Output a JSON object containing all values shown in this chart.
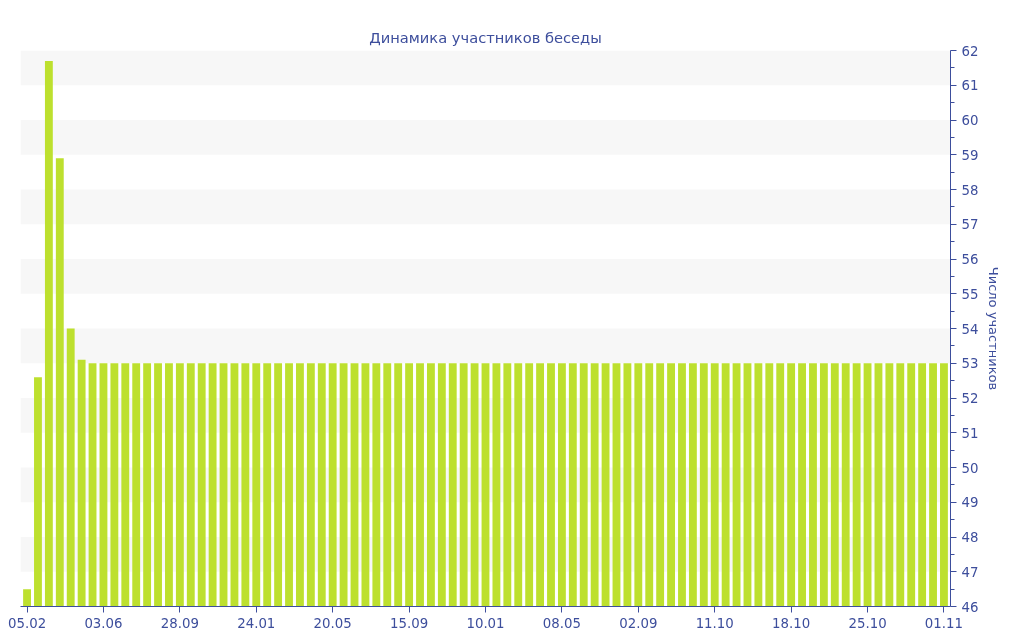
{
  "chart_data": {
    "type": "bar",
    "title": "Динамика участников беседы",
    "ylabel": "Число участников",
    "categories": [
      "05.02",
      null,
      null,
      null,
      null,
      null,
      null,
      "03.06",
      null,
      null,
      null,
      null,
      null,
      null,
      "28.09",
      null,
      null,
      null,
      null,
      null,
      null,
      "24.01",
      null,
      null,
      null,
      null,
      null,
      null,
      "20.05",
      null,
      null,
      null,
      null,
      null,
      null,
      "15.09",
      null,
      null,
      null,
      null,
      null,
      null,
      "10.01",
      null,
      null,
      null,
      null,
      null,
      null,
      "08.05",
      null,
      null,
      null,
      null,
      null,
      null,
      "02.09",
      null,
      null,
      null,
      null,
      null,
      null,
      "11.10",
      null,
      null,
      null,
      null,
      null,
      null,
      "18.10",
      null,
      null,
      null,
      null,
      null,
      null,
      "25.10",
      null,
      null,
      null,
      null,
      null,
      null,
      "01.11"
    ],
    "values": [
      46.5,
      52.6,
      61.7,
      58.9,
      54,
      53.1,
      53,
      53,
      53,
      53,
      53,
      53,
      53,
      53,
      53,
      53,
      53,
      53,
      53,
      53,
      53,
      53,
      53,
      53,
      53,
      53,
      53,
      53,
      53,
      53,
      53,
      53,
      53,
      53,
      53,
      53,
      53,
      53,
      53,
      53,
      53,
      53,
      53,
      53,
      53,
      53,
      53,
      53,
      53,
      53,
      53,
      53,
      53,
      53,
      53,
      53,
      53,
      53,
      53,
      53,
      53,
      53,
      53,
      53,
      53,
      53,
      53,
      53,
      53,
      53,
      53,
      53,
      53,
      53,
      53,
      53,
      53,
      53,
      53,
      53,
      53,
      53,
      53,
      53,
      53
    ],
    "color": "#bde02e",
    "ylim": [
      46,
      62
    ],
    "yticks": [
      46,
      47,
      48,
      49,
      50,
      51,
      52,
      53,
      54,
      55,
      56,
      57,
      58,
      59,
      60,
      61,
      62
    ]
  }
}
